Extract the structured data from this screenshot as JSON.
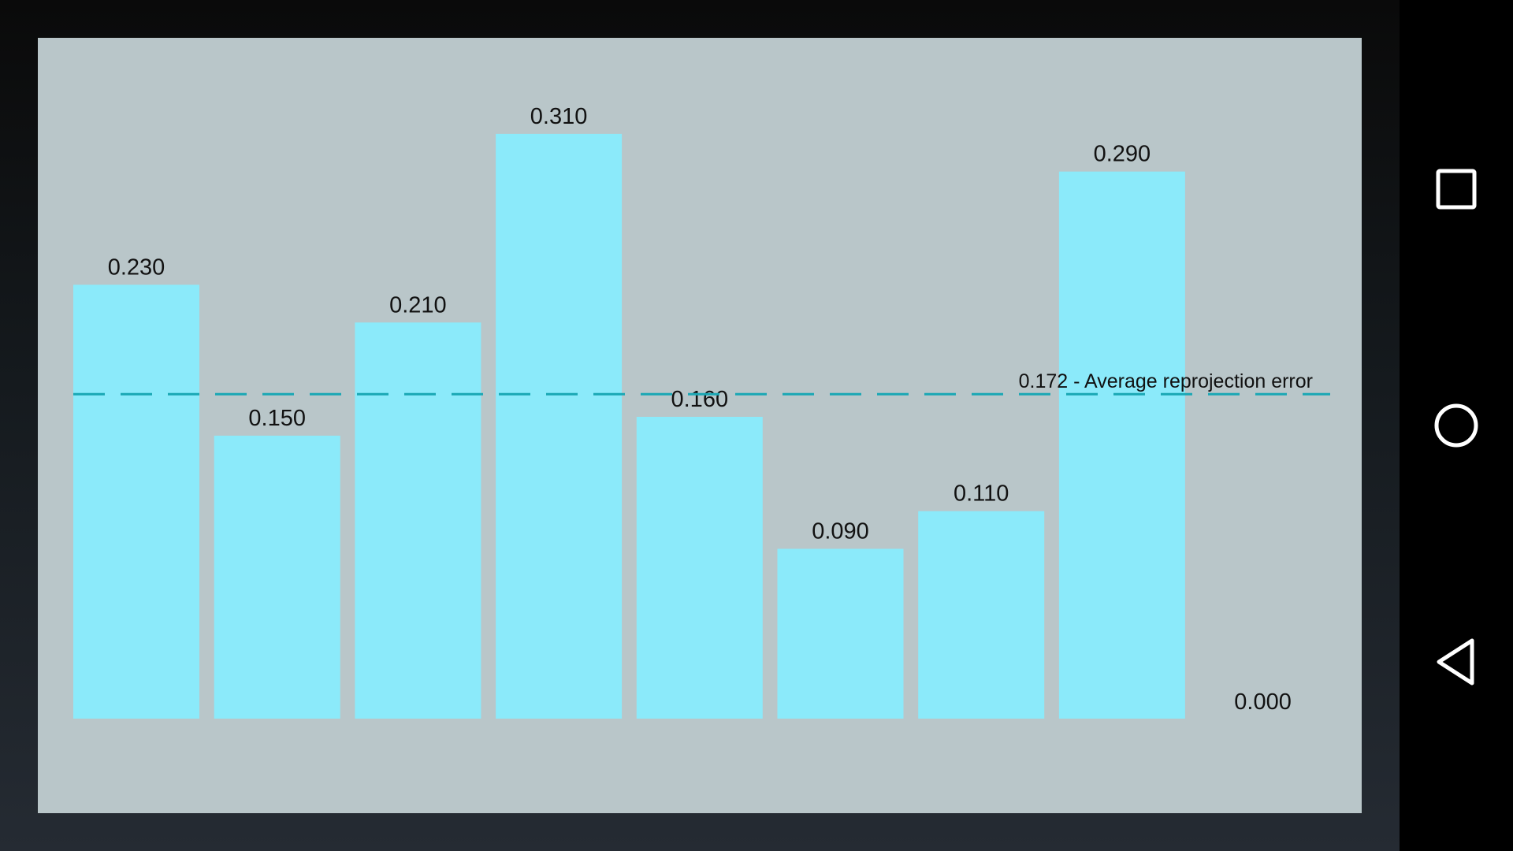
{
  "chart_data": {
    "type": "bar",
    "categories": [
      "",
      "",
      "",
      "",
      "",
      "",
      "",
      "",
      ""
    ],
    "values": [
      0.23,
      0.15,
      0.21,
      0.31,
      0.16,
      0.09,
      0.11,
      0.29,
      0.0
    ],
    "value_labels": [
      "0.230",
      "0.150",
      "0.210",
      "0.310",
      "0.160",
      "0.090",
      "0.110",
      "0.290",
      "0.000"
    ],
    "reference_line": {
      "value": 0.172,
      "label": "0.172 - Average reprojection error",
      "style": "dashed"
    },
    "ylim": [
      0,
      0.35
    ],
    "grid": false,
    "axes_visible": false,
    "title": "",
    "xlabel": "",
    "ylabel": ""
  },
  "colors": {
    "bar": "#8beafa",
    "panel_background": "#b9c6c9",
    "average_line": "#1aa7b4",
    "label_text": "#111111",
    "nav_background": "#000000",
    "nav_icon": "#ffffff"
  },
  "nav_bar": {
    "buttons": [
      {
        "name": "recents",
        "icon": "square-icon"
      },
      {
        "name": "home",
        "icon": "circle-icon"
      },
      {
        "name": "back",
        "icon": "back-triangle-icon"
      }
    ]
  }
}
